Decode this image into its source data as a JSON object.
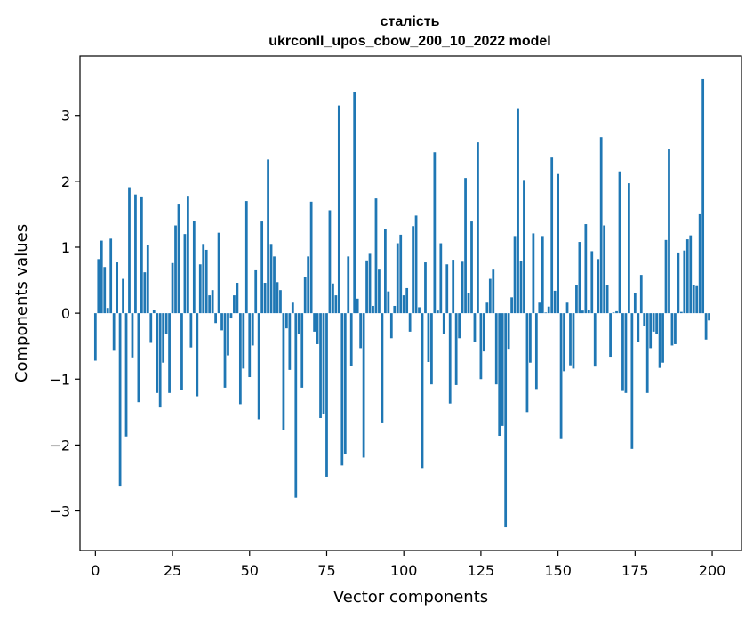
{
  "chart_data": {
    "type": "bar",
    "title": "сталість",
    "subtitle": "ukrconll_upos_cbow_200_10_2022 model",
    "xlabel": "Vector components",
    "ylabel": "Components values",
    "xlim": [
      -5,
      209.5
    ],
    "ylim": [
      -3.6,
      3.9
    ],
    "xticks": [
      0,
      25,
      50,
      75,
      100,
      125,
      150,
      175,
      200
    ],
    "xtick_labels": [
      "0",
      "25",
      "50",
      "75",
      "100",
      "125",
      "150",
      "175",
      "200"
    ],
    "yticks": [
      -3,
      -2,
      -1,
      0,
      1,
      2,
      3
    ],
    "ytick_labels": [
      "−3",
      "−2",
      "−1",
      "0",
      "1",
      "2",
      "3"
    ],
    "grid": false,
    "bar_color": "#1f77b4",
    "values": [
      -0.72,
      0.82,
      1.1,
      0.7,
      0.08,
      1.13,
      -0.57,
      0.77,
      -2.63,
      0.52,
      -1.87,
      1.91,
      -0.67,
      1.8,
      -1.35,
      1.77,
      0.62,
      1.04,
      -0.45,
      0.05,
      -1.21,
      -1.43,
      -0.75,
      -0.32,
      -1.21,
      0.76,
      1.33,
      1.66,
      -1.17,
      1.2,
      1.78,
      -0.52,
      1.4,
      -1.26,
      0.74,
      1.05,
      0.96,
      0.27,
      0.35,
      -0.15,
      1.22,
      -0.26,
      -1.13,
      -0.64,
      -0.08,
      0.27,
      0.46,
      -1.38,
      -0.84,
      1.7,
      -0.97,
      -0.49,
      0.65,
      -1.61,
      1.39,
      0.46,
      2.33,
      1.05,
      0.86,
      0.47,
      0.35,
      -1.77,
      -0.23,
      -0.86,
      0.16,
      -2.8,
      -0.32,
      -1.13,
      0.55,
      0.86,
      1.69,
      -0.28,
      -0.47,
      -1.59,
      -1.53,
      -2.48,
      1.56,
      0.45,
      0.27,
      3.15,
      -2.31,
      -2.14,
      0.86,
      -0.8,
      3.35,
      0.22,
      -0.53,
      -2.19,
      0.8,
      0.9,
      0.11,
      1.74,
      0.66,
      -1.67,
      1.27,
      0.33,
      -0.38,
      0.11,
      1.06,
      1.19,
      0.27,
      0.38,
      -0.28,
      1.32,
      1.48,
      0.09,
      -2.35,
      0.77,
      -0.74,
      -1.08,
      2.44,
      0.04,
      1.06,
      -0.31,
      0.74,
      -1.37,
      0.81,
      -1.09,
      -0.38,
      0.78,
      2.05,
      0.3,
      1.39,
      -0.44,
      2.59,
      -1.0,
      -0.58,
      0.16,
      0.52,
      0.66,
      -1.08,
      -1.86,
      -1.71,
      -3.25,
      -0.54,
      0.24,
      1.17,
      3.11,
      0.79,
      2.02,
      -1.5,
      -0.75,
      1.21,
      -1.15,
      0.16,
      1.17,
      0.01,
      0.1,
      2.36,
      0.34,
      2.11,
      -1.91,
      -0.88,
      0.16,
      -0.79,
      -0.84,
      0.43,
      1.08,
      0.04,
      1.35,
      0.05,
      0.94,
      -0.81,
      0.82,
      2.67,
      1.33,
      0.43,
      -0.66,
      0.01,
      0.03,
      2.15,
      -1.18,
      -1.21,
      1.97,
      -2.06,
      0.31,
      -0.43,
      0.58,
      -0.2,
      -1.21,
      -0.53,
      -0.28,
      -0.31,
      -0.83,
      -0.75,
      1.11,
      2.49,
      -0.49,
      -0.47,
      0.92,
      0.02,
      0.95,
      1.12,
      1.18,
      0.43,
      0.41,
      1.5,
      3.55,
      -0.4,
      -0.11
    ]
  }
}
